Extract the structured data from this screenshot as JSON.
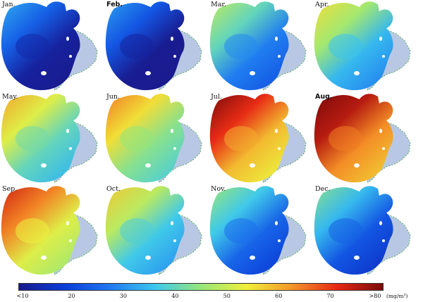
{
  "panels": [
    {
      "label": "Jan.",
      "bold": false,
      "level": 0.15
    },
    {
      "label": "Feb.",
      "bold": true,
      "level": 0.13
    },
    {
      "label": "Mar.",
      "bold": false,
      "level": 0.38
    },
    {
      "label": "Apr.",
      "bold": false,
      "level": 0.47
    },
    {
      "label": "May.",
      "bold": false,
      "level": 0.55
    },
    {
      "label": "Jun.",
      "bold": false,
      "level": 0.6
    },
    {
      "label": "Jul.",
      "bold": false,
      "level": 0.82
    },
    {
      "label": "Aug.",
      "bold": true,
      "level": 0.88
    },
    {
      "label": "Sep.",
      "bold": false,
      "level": 0.72
    },
    {
      "label": "Oct.",
      "bold": false,
      "level": 0.5
    },
    {
      "label": "Nov.",
      "bold": false,
      "level": 0.33
    },
    {
      "label": "Dec.",
      "bold": false,
      "level": 0.3
    }
  ],
  "colorbar": {
    "ticks": [
      "<10",
      "20",
      "30",
      "40",
      "50",
      "60",
      "70",
      ">80"
    ],
    "unit": "(mg/m³)",
    "colors": [
      "#1a1a8c",
      "#0a3cd8",
      "#1e78f0",
      "#3cc8ee",
      "#96e67a",
      "#f0f03c",
      "#f49628",
      "#e62814",
      "#7a0a0a"
    ]
  },
  "land_color": "#b8c8e4",
  "shoreline_color": "#5aaa5a"
}
